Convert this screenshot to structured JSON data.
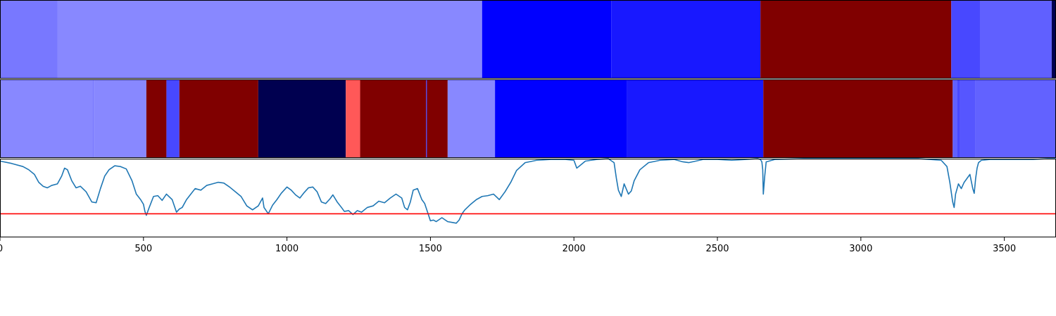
{
  "chart_data": [
    {
      "type": "heatmap",
      "name": "segmentation-1",
      "xlim": [
        0,
        3680
      ],
      "segments": [
        {
          "start": 0,
          "end": 200,
          "color": "#7878ff"
        },
        {
          "start": 200,
          "end": 1680,
          "color": "#8888ff"
        },
        {
          "start": 1680,
          "end": 2130,
          "color": "#0000ff"
        },
        {
          "start": 2130,
          "end": 2650,
          "color": "#1818ff"
        },
        {
          "start": 2650,
          "end": 3315,
          "color": "#800000"
        },
        {
          "start": 3315,
          "end": 3415,
          "color": "#4848ff"
        },
        {
          "start": 3415,
          "end": 3665,
          "color": "#6060ff"
        },
        {
          "start": 3665,
          "end": 3680,
          "color": "#000050"
        }
      ]
    },
    {
      "type": "heatmap",
      "name": "segmentation-2",
      "xlim": [
        0,
        3680
      ],
      "segments": [
        {
          "start": 0,
          "end": 325,
          "color": "#8888ff"
        },
        {
          "start": 325,
          "end": 327,
          "color": "#6464ff"
        },
        {
          "start": 327,
          "end": 510,
          "color": "#8888ff"
        },
        {
          "start": 510,
          "end": 580,
          "color": "#800000"
        },
        {
          "start": 580,
          "end": 625,
          "color": "#4848ff"
        },
        {
          "start": 625,
          "end": 900,
          "color": "#800000"
        },
        {
          "start": 900,
          "end": 1205,
          "color": "#000050"
        },
        {
          "start": 1205,
          "end": 1255,
          "color": "#ff5858"
        },
        {
          "start": 1255,
          "end": 1485,
          "color": "#800000"
        },
        {
          "start": 1485,
          "end": 1488,
          "color": "#4040ff"
        },
        {
          "start": 1488,
          "end": 1560,
          "color": "#800000"
        },
        {
          "start": 1560,
          "end": 1725,
          "color": "#8888ff"
        },
        {
          "start": 1725,
          "end": 2185,
          "color": "#0000ff"
        },
        {
          "start": 2185,
          "end": 2660,
          "color": "#1818ff"
        },
        {
          "start": 2660,
          "end": 3320,
          "color": "#800000"
        },
        {
          "start": 3320,
          "end": 3335,
          "color": "#6060ff"
        },
        {
          "start": 3335,
          "end": 3345,
          "color": "#4848ff"
        },
        {
          "start": 3345,
          "end": 3400,
          "color": "#5656ff"
        },
        {
          "start": 3400,
          "end": 3680,
          "color": "#6262ff"
        }
      ]
    },
    {
      "type": "line",
      "name": "signal",
      "xlim": [
        0,
        3680
      ],
      "ylim": [
        0,
        1
      ],
      "line_color": "#1f77b4",
      "threshold": {
        "y": 0.3,
        "color": "#ff0000"
      },
      "x_ticks": [
        0,
        500,
        1000,
        1500,
        2000,
        2500,
        3000,
        3500
      ],
      "x_tick_labels": [
        "0",
        "500",
        "1000",
        "1500",
        "2000",
        "2500",
        "3000",
        "3500"
      ],
      "series": [
        {
          "x": [
            0,
            40,
            80,
            100,
            120,
            135,
            150,
            165,
            180,
            200,
            215,
            225,
            235,
            250,
            265,
            280,
            300,
            320,
            335,
            350,
            365,
            380,
            400,
            420,
            440,
            460,
            475,
            490,
            500,
            505,
            510,
            520,
            535,
            550,
            565,
            580,
            600,
            615,
            625,
            635,
            650,
            665,
            680,
            700,
            720,
            740,
            760,
            780,
            800,
            820,
            840,
            860,
            880,
            900,
            915,
            920,
            935,
            950,
            965,
            980,
            1000,
            1015,
            1030,
            1045,
            1060,
            1075,
            1090,
            1105,
            1120,
            1135,
            1150,
            1160,
            1175,
            1190,
            1200,
            1215,
            1230,
            1245,
            1260,
            1280,
            1300,
            1320,
            1340,
            1360,
            1380,
            1400,
            1410,
            1420,
            1430,
            1440,
            1455,
            1470,
            1480,
            1490,
            1500,
            1510,
            1520,
            1540,
            1560,
            1575,
            1590,
            1600,
            1610,
            1620,
            1640,
            1660,
            1680,
            1700,
            1720,
            1740,
            1760,
            1780,
            1800,
            1830,
            1870,
            1920,
            1970,
            2000,
            2010,
            2020,
            2040,
            2080,
            2120,
            2140,
            2148,
            2155,
            2165,
            2175,
            2190,
            2200,
            2210,
            2230,
            2260,
            2300,
            2350,
            2380,
            2400,
            2450,
            2500,
            2550,
            2600,
            2640,
            2650,
            2655,
            2658,
            2660,
            2665,
            2670,
            2700,
            2800,
            2900,
            3000,
            3100,
            3200,
            3280,
            3300,
            3310,
            3320,
            3325,
            3330,
            3340,
            3350,
            3360,
            3370,
            3380,
            3390,
            3395,
            3400,
            3405,
            3410,
            3420,
            3450,
            3500,
            3550,
            3600,
            3650,
            3680
          ],
          "y": [
            0.97,
            0.94,
            0.9,
            0.86,
            0.8,
            0.7,
            0.65,
            0.63,
            0.66,
            0.68,
            0.78,
            0.88,
            0.86,
            0.72,
            0.63,
            0.65,
            0.58,
            0.45,
            0.44,
            0.62,
            0.78,
            0.86,
            0.91,
            0.9,
            0.87,
            0.72,
            0.55,
            0.48,
            0.42,
            0.33,
            0.28,
            0.38,
            0.52,
            0.53,
            0.47,
            0.55,
            0.48,
            0.32,
            0.36,
            0.38,
            0.48,
            0.55,
            0.62,
            0.6,
            0.66,
            0.68,
            0.7,
            0.69,
            0.64,
            0.58,
            0.52,
            0.4,
            0.35,
            0.4,
            0.5,
            0.38,
            0.3,
            0.41,
            0.48,
            0.56,
            0.64,
            0.6,
            0.54,
            0.5,
            0.57,
            0.63,
            0.64,
            0.58,
            0.45,
            0.43,
            0.49,
            0.54,
            0.45,
            0.38,
            0.33,
            0.34,
            0.29,
            0.34,
            0.32,
            0.38,
            0.4,
            0.46,
            0.44,
            0.5,
            0.55,
            0.5,
            0.38,
            0.35,
            0.45,
            0.6,
            0.62,
            0.48,
            0.43,
            0.32,
            0.21,
            0.22,
            0.2,
            0.25,
            0.2,
            0.19,
            0.18,
            0.22,
            0.3,
            0.35,
            0.42,
            0.48,
            0.52,
            0.53,
            0.55,
            0.48,
            0.58,
            0.7,
            0.85,
            0.95,
            0.98,
            0.99,
            0.99,
            0.98,
            0.88,
            0.91,
            0.97,
            0.99,
            1.0,
            0.95,
            0.75,
            0.6,
            0.52,
            0.68,
            0.55,
            0.59,
            0.72,
            0.86,
            0.95,
            0.98,
            0.99,
            0.96,
            0.95,
            0.99,
            0.99,
            0.98,
            0.99,
            1.0,
            0.99,
            0.96,
            0.86,
            0.55,
            0.78,
            0.96,
            0.99,
            1.0,
            1.0,
            1.0,
            1.0,
            1.0,
            0.98,
            0.9,
            0.7,
            0.45,
            0.38,
            0.55,
            0.68,
            0.62,
            0.7,
            0.75,
            0.8,
            0.62,
            0.56,
            0.75,
            0.88,
            0.95,
            0.98,
            0.99,
            0.99,
            0.99,
            0.99,
            1.0,
            1.0
          ]
        }
      ]
    }
  ]
}
